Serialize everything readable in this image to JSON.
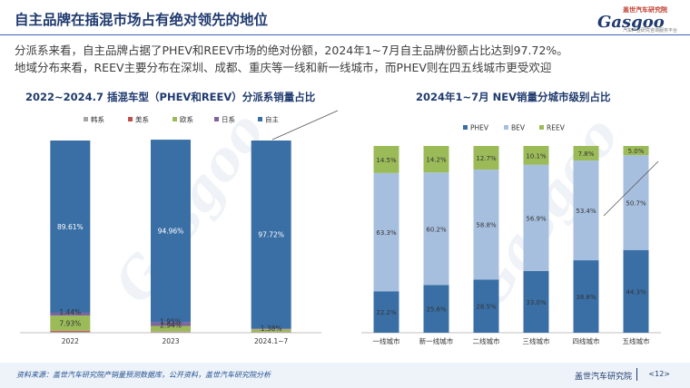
{
  "header": {
    "title": "自主品牌在插混市场占有绝对领先的地位",
    "logo_sub": "盖世汽车研究院",
    "logo_word": "Gasgoo",
    "logo_tag": "汽车产业研究咨询服务平台"
  },
  "summary": {
    "line1": "分派系来看，自主品牌占据了PHEV和REEV市场的绝对份额，2024年1~7月自主品牌份额占比达到97.72%。",
    "line2": "地域分布来看，REEV主要分布在深圳、成都、重庆等一线和新一线城市，而PHEV则在四五线城市更受欢迎"
  },
  "watermark": {
    "word": "Gasgoo",
    "cn": "盖世汽车研究院"
  },
  "footer": {
    "source": "资料来源：盖世汽车研究院产销量预测数据库，公开资料，盖世汽车研究院分析",
    "brand": "盖世汽车研究院",
    "page": "<12>"
  },
  "colors": {
    "title": "#1f3a6e",
    "korean": "#a6a6a6",
    "american": "#c0504d",
    "european": "#9bbb59",
    "japanese": "#8064a2",
    "domestic": "#3a6fa6",
    "phev": "#3a6fa6",
    "bev": "#a7bfdf",
    "reev": "#9bbb59"
  },
  "chart_data": [
    {
      "type": "bar",
      "stacked": true,
      "title": "2022~2024.7 插混车型（PHEV和REEV）分派系销量占比",
      "categories": [
        "2022",
        "2023",
        "2024.1~7"
      ],
      "legend_position": "top",
      "series": [
        {
          "name": "韩系",
          "color": "#a6a6a6",
          "values": [
            0.5,
            0.4,
            0.3
          ]
        },
        {
          "name": "美系",
          "color": "#c0504d",
          "values": [
            0.52,
            0.19,
            0.12
          ]
        },
        {
          "name": "欧系",
          "color": "#9bbb59",
          "values": [
            7.93,
            2.94,
            1.38
          ]
        },
        {
          "name": "日系",
          "color": "#8064a2",
          "values": [
            1.44,
            1.95,
            0.48
          ]
        },
        {
          "name": "自主",
          "color": "#3a6fa6",
          "values": [
            89.61,
            94.96,
            97.72
          ]
        }
      ],
      "data_labels": [
        {
          "category": "2022",
          "series": "自主",
          "text": "89.61%"
        },
        {
          "category": "2022",
          "series": "日系",
          "text": "1.44%"
        },
        {
          "category": "2022",
          "series": "欧系",
          "text": "7.93%"
        },
        {
          "category": "2023",
          "series": "自主",
          "text": "94.96%"
        },
        {
          "category": "2023",
          "series": "日系",
          "text": "1.95%"
        },
        {
          "category": "2023",
          "series": "欧系",
          "text": "2.94%"
        },
        {
          "category": "2024.1~7",
          "series": "自主",
          "text": "97.72%"
        },
        {
          "category": "2024.1~7",
          "series": "欧系",
          "text": "1.38%"
        }
      ],
      "ylim": [
        0,
        100
      ]
    },
    {
      "type": "bar",
      "stacked": true,
      "title": "2024年1~7月 NEV销量分城市级别占比",
      "categories": [
        "一线城市",
        "新一线城市",
        "二线城市",
        "三线城市",
        "四线城市",
        "五线城市"
      ],
      "legend_position": "top",
      "series": [
        {
          "name": "PHEV",
          "color": "#3a6fa6",
          "values": [
            22.2,
            25.6,
            28.5,
            33.0,
            38.8,
            44.3
          ]
        },
        {
          "name": "BEV",
          "color": "#a7bfdf",
          "values": [
            63.3,
            60.2,
            58.8,
            56.9,
            53.4,
            50.7
          ]
        },
        {
          "name": "REEV",
          "color": "#9bbb59",
          "values": [
            14.5,
            14.2,
            12.7,
            10.1,
            7.8,
            5.0
          ]
        }
      ],
      "ylim": [
        0,
        100
      ]
    }
  ]
}
